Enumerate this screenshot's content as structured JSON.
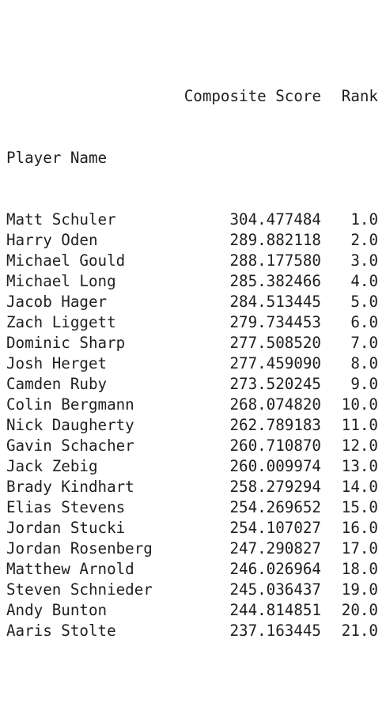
{
  "headers": {
    "composite_score": "Composite Score",
    "rank": "Rank",
    "index_name": "Player Name"
  },
  "rows": [
    {
      "name": "Matt Schuler",
      "score": "304.477484",
      "rank": "1.0"
    },
    {
      "name": "Harry Oden",
      "score": "289.882118",
      "rank": "2.0"
    },
    {
      "name": "Michael Gould",
      "score": "288.177580",
      "rank": "3.0"
    },
    {
      "name": "Michael Long",
      "score": "285.382466",
      "rank": "4.0"
    },
    {
      "name": "Jacob Hager",
      "score": "284.513445",
      "rank": "5.0"
    },
    {
      "name": "Zach Liggett",
      "score": "279.734453",
      "rank": "6.0"
    },
    {
      "name": "Dominic Sharp",
      "score": "277.508520",
      "rank": "7.0"
    },
    {
      "name": "Josh Herget",
      "score": "277.459090",
      "rank": "8.0"
    },
    {
      "name": "Camden Ruby",
      "score": "273.520245",
      "rank": "9.0"
    },
    {
      "name": "Colin Bergmann",
      "score": "268.074820",
      "rank": "10.0"
    },
    {
      "name": "Nick Daugherty",
      "score": "262.789183",
      "rank": "11.0"
    },
    {
      "name": "Gavin Schacher",
      "score": "260.710870",
      "rank": "12.0"
    },
    {
      "name": "Jack Zebig",
      "score": "260.009974",
      "rank": "13.0"
    },
    {
      "name": "Brady Kindhart",
      "score": "258.279294",
      "rank": "14.0"
    },
    {
      "name": "Elias Stevens",
      "score": "254.269652",
      "rank": "15.0"
    },
    {
      "name": "Jordan Stucki",
      "score": "254.107027",
      "rank": "16.0"
    },
    {
      "name": "Jordan Rosenberg",
      "score": "247.290827",
      "rank": "17.0"
    },
    {
      "name": "Matthew Arnold",
      "score": "246.026964",
      "rank": "18.0"
    },
    {
      "name": "Steven Schnieder",
      "score": "245.036437",
      "rank": "19.0"
    },
    {
      "name": "Andy Bunton",
      "score": "244.814851",
      "rank": "20.0"
    },
    {
      "name": "Aaris Stolte",
      "score": "237.163445",
      "rank": "21.0"
    }
  ]
}
